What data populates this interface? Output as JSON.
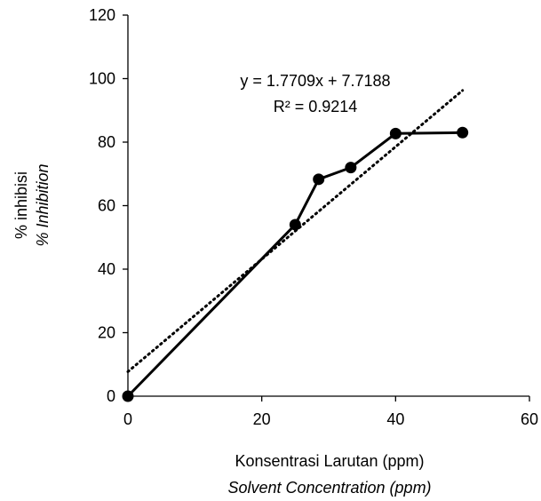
{
  "chart_data": {
    "type": "scatter",
    "x": [
      0,
      25,
      28.5,
      33.3,
      40,
      50
    ],
    "y": [
      0,
      54,
      68.3,
      72,
      82.7,
      83
    ],
    "series": [
      {
        "values": [
          0,
          54,
          68.3,
          72,
          82.7,
          83
        ],
        "style": "solid line with filled circle markers",
        "color": "#000000"
      }
    ],
    "trendline": {
      "type": "linear",
      "slope": 1.7709,
      "intercept": 7.7188,
      "x_range": [
        0,
        50
      ],
      "style": "dotted",
      "equation_label": "y = 1.7709x + 7.7188",
      "r2_label": "R² = 0.9214"
    },
    "xlabel": "Konsentrasi Larutan (ppm)",
    "xlabel_italic": "Solvent Concentration (ppm)",
    "ylabel": "% inhibisi",
    "ylabel_italic": "% Inhibition",
    "xlim": [
      0,
      60
    ],
    "ylim": [
      0,
      120
    ],
    "x_ticks": [
      "0",
      "20",
      "40",
      "60"
    ],
    "y_ticks": [
      "0",
      "20",
      "40",
      "60",
      "80",
      "100",
      "120"
    ],
    "grid": false,
    "legend": "none"
  }
}
